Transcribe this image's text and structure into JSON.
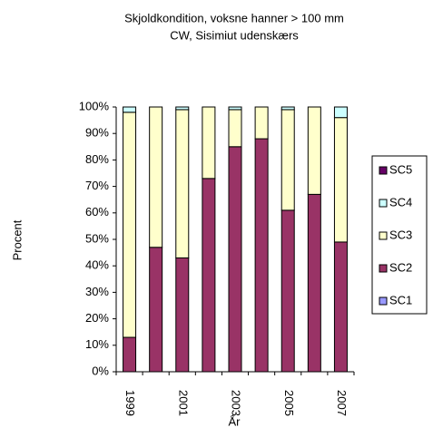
{
  "chart_data": {
    "type": "stacked_bar",
    "title": [
      "Skjoldkondition, voksne hanner > 100 mm",
      "CW, Sisimiut udenskærs"
    ],
    "x_label": "År",
    "y_label": "Procent",
    "categories": [
      "1999",
      null,
      "2001",
      null,
      "2003",
      null,
      "2005",
      null,
      "2007"
    ],
    "series": [
      {
        "name": "SC1",
        "color": "#9999ff",
        "values": [
          0,
          0,
          0,
          0,
          0,
          0,
          0,
          0,
          0
        ]
      },
      {
        "name": "SC2",
        "color": "#993366",
        "values": [
          13,
          47,
          43,
          73,
          85,
          88,
          61,
          67,
          49
        ]
      },
      {
        "name": "SC3",
        "color": "#ffffcc",
        "values": [
          85,
          53,
          56,
          27,
          14,
          12,
          38,
          33,
          47
        ]
      },
      {
        "name": "SC4",
        "color": "#ccffff",
        "values": [
          2,
          0,
          1,
          0,
          1,
          0,
          1,
          0,
          4
        ]
      },
      {
        "name": "SC5",
        "color": "#660066",
        "values": [
          0,
          0,
          0,
          0,
          0,
          0,
          0,
          0,
          0
        ]
      }
    ],
    "ylim": [
      0,
      100
    ],
    "yticks": [
      {
        "value": 0,
        "label": "0%"
      },
      {
        "value": 10,
        "label": "10%"
      },
      {
        "value": 20,
        "label": "20%"
      },
      {
        "value": 30,
        "label": "30%"
      },
      {
        "value": 40,
        "label": "40%"
      },
      {
        "value": 50,
        "label": "50%"
      },
      {
        "value": 60,
        "label": "60%"
      },
      {
        "value": 70,
        "label": "70%"
      },
      {
        "value": 80,
        "label": "80%"
      },
      {
        "value": 90,
        "label": "90%"
      },
      {
        "value": 100,
        "label": "100%"
      }
    ],
    "legend": "right"
  }
}
